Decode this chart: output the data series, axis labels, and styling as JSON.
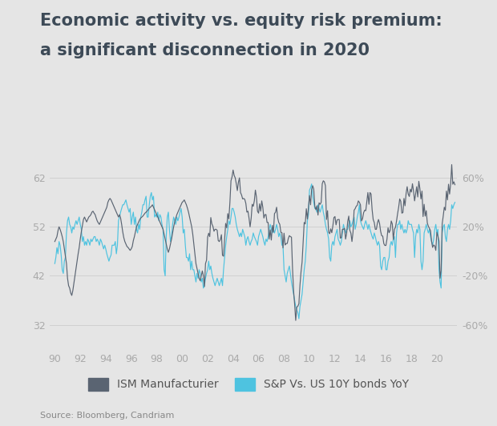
{
  "title_line1": "Economic activity vs. equity risk premium:",
  "title_line2": "a significant disconnection in 2020",
  "source": "Source: Bloomberg, Candriam",
  "legend": [
    "ISM Manufacturier",
    "S&P Vs. US 10Y bonds YoY"
  ],
  "ism_color": "#5a6472",
  "sp_color": "#4ec3e0",
  "background_color": "#e5e5e5",
  "left_yticks": [
    32,
    42,
    52,
    62
  ],
  "right_ytick_labels": [
    "-60%",
    "-20%",
    "20%",
    "60%"
  ],
  "right_yticks": [
    -60,
    -20,
    20,
    60
  ],
  "ylim_left": [
    27,
    67
  ],
  "xlim": [
    1989.6,
    2021.6
  ],
  "xtick_positions": [
    1990,
    1992,
    1994,
    1996,
    1998,
    2000,
    2002,
    2004,
    2006,
    2008,
    2010,
    2012,
    2014,
    2016,
    2018,
    2020
  ],
  "xtick_labels": [
    "90",
    "92",
    "94",
    "96",
    "98",
    "00",
    "02",
    "04",
    "06",
    "08",
    "10",
    "12",
    "14",
    "16",
    "18",
    "20"
  ],
  "title_fontsize": 15,
  "tick_fontsize": 9,
  "source_fontsize": 8,
  "legend_fontsize": 10
}
